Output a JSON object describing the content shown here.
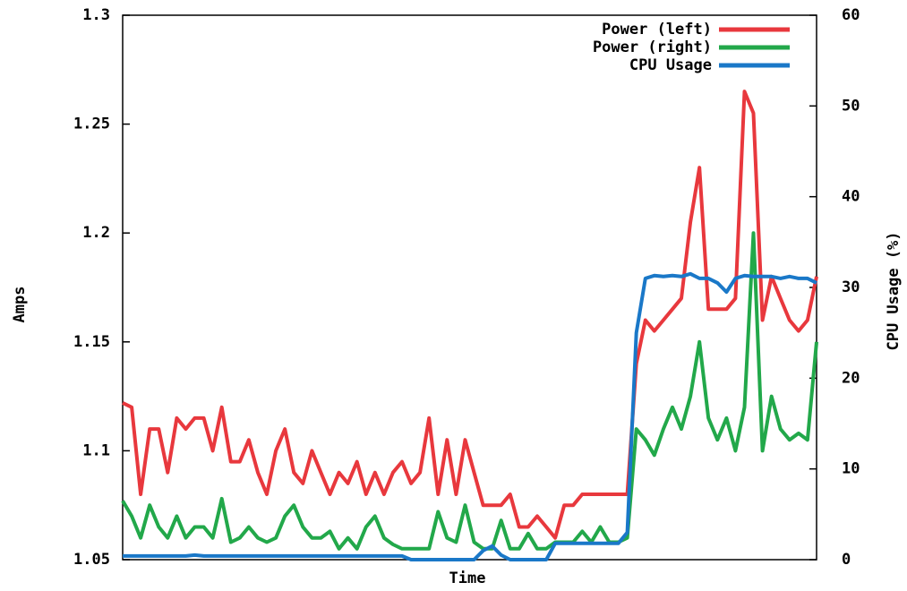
{
  "chart_data": {
    "type": "line",
    "x_label": "Time",
    "y_label": "Amps",
    "y2_label": "CPU Usage (%)",
    "ylim": [
      1.05,
      1.3
    ],
    "yticks": [
      1.05,
      1.1,
      1.15,
      1.2,
      1.25,
      1.3
    ],
    "y2lim": [
      0,
      60
    ],
    "y2ticks": [
      0,
      10,
      20,
      30,
      40,
      50,
      60
    ],
    "legend": "upper right",
    "series": [
      {
        "name": "Power (left)",
        "color": "#e8383d",
        "axis": "y",
        "values": [
          1.122,
          1.12,
          1.08,
          1.11,
          1.11,
          1.09,
          1.115,
          1.11,
          1.115,
          1.115,
          1.1,
          1.12,
          1.095,
          1.095,
          1.105,
          1.09,
          1.08,
          1.1,
          1.11,
          1.09,
          1.085,
          1.1,
          1.09,
          1.08,
          1.09,
          1.085,
          1.095,
          1.08,
          1.09,
          1.08,
          1.09,
          1.095,
          1.085,
          1.09,
          1.115,
          1.08,
          1.105,
          1.08,
          1.105,
          1.09,
          1.075,
          1.075,
          1.075,
          1.08,
          1.065,
          1.065,
          1.07,
          1.065,
          1.06,
          1.075,
          1.075,
          1.08,
          1.08,
          1.08,
          1.08,
          1.08,
          1.08,
          1.14,
          1.16,
          1.155,
          1.16,
          1.165,
          1.17,
          1.205,
          1.23,
          1.165,
          1.165,
          1.165,
          1.17,
          1.265,
          1.255,
          1.16,
          1.18,
          1.17,
          1.16,
          1.155,
          1.16,
          1.18
        ]
      },
      {
        "name": "Power (right)",
        "color": "#22a84a",
        "axis": "y",
        "values": [
          1.077,
          1.07,
          1.06,
          1.075,
          1.065,
          1.06,
          1.07,
          1.06,
          1.065,
          1.065,
          1.06,
          1.078,
          1.058,
          1.06,
          1.065,
          1.06,
          1.058,
          1.06,
          1.07,
          1.075,
          1.065,
          1.06,
          1.06,
          1.063,
          1.055,
          1.06,
          1.055,
          1.065,
          1.07,
          1.06,
          1.057,
          1.055,
          1.055,
          1.055,
          1.055,
          1.072,
          1.06,
          1.058,
          1.075,
          1.058,
          1.055,
          1.055,
          1.068,
          1.055,
          1.055,
          1.062,
          1.055,
          1.055,
          1.058,
          1.058,
          1.058,
          1.063,
          1.058,
          1.065,
          1.058,
          1.058,
          1.06,
          1.11,
          1.105,
          1.098,
          1.11,
          1.12,
          1.11,
          1.125,
          1.15,
          1.115,
          1.105,
          1.115,
          1.1,
          1.12,
          1.2,
          1.1,
          1.125,
          1.11,
          1.105,
          1.108,
          1.105,
          1.15
        ]
      },
      {
        "name": "CPU Usage",
        "color": "#1a78c8",
        "axis": "y2",
        "values": [
          0.4,
          0.4,
          0.4,
          0.4,
          0.4,
          0.4,
          0.4,
          0.4,
          0.5,
          0.4,
          0.4,
          0.4,
          0.4,
          0.4,
          0.4,
          0.4,
          0.4,
          0.4,
          0.4,
          0.4,
          0.4,
          0.4,
          0.4,
          0.4,
          0.4,
          0.4,
          0.4,
          0.4,
          0.4,
          0.4,
          0.4,
          0.4,
          0,
          0,
          0,
          0,
          0,
          0,
          0,
          0,
          1,
          1.5,
          0.5,
          0,
          0,
          0,
          0,
          0,
          1.8,
          1.8,
          1.8,
          1.8,
          1.8,
          1.8,
          1.8,
          1.8,
          3,
          25,
          31,
          31.3,
          31.2,
          31.3,
          31.2,
          31.5,
          31,
          31,
          30.5,
          29.5,
          31,
          31.3,
          31.2,
          31.2,
          31.2,
          31,
          31.2,
          31,
          31,
          30.5
        ]
      }
    ]
  }
}
